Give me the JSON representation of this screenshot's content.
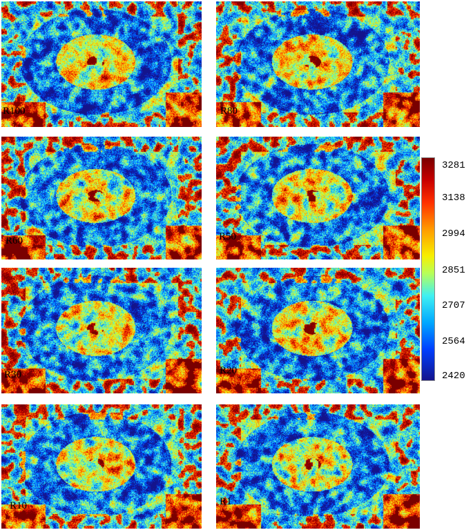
{
  "panels": [
    {
      "label": "R100"
    },
    {
      "label": "R80"
    },
    {
      "label": "R60"
    },
    {
      "label": "R50"
    },
    {
      "label": "R30"
    },
    {
      "label": "R20"
    },
    {
      "label": "R10"
    },
    {
      "label": "R1"
    }
  ],
  "colorbar": {
    "ticks": [
      "3281",
      "3138",
      "2994",
      "2851",
      "2707",
      "2564",
      "2420"
    ],
    "colormap": [
      "#14148c",
      "#0040ff",
      "#00a8ff",
      "#3ff0f2",
      "#b6ff5a",
      "#f7ef00",
      "#ff9a00",
      "#ff3000",
      "#c80000",
      "#7a0000"
    ]
  }
}
